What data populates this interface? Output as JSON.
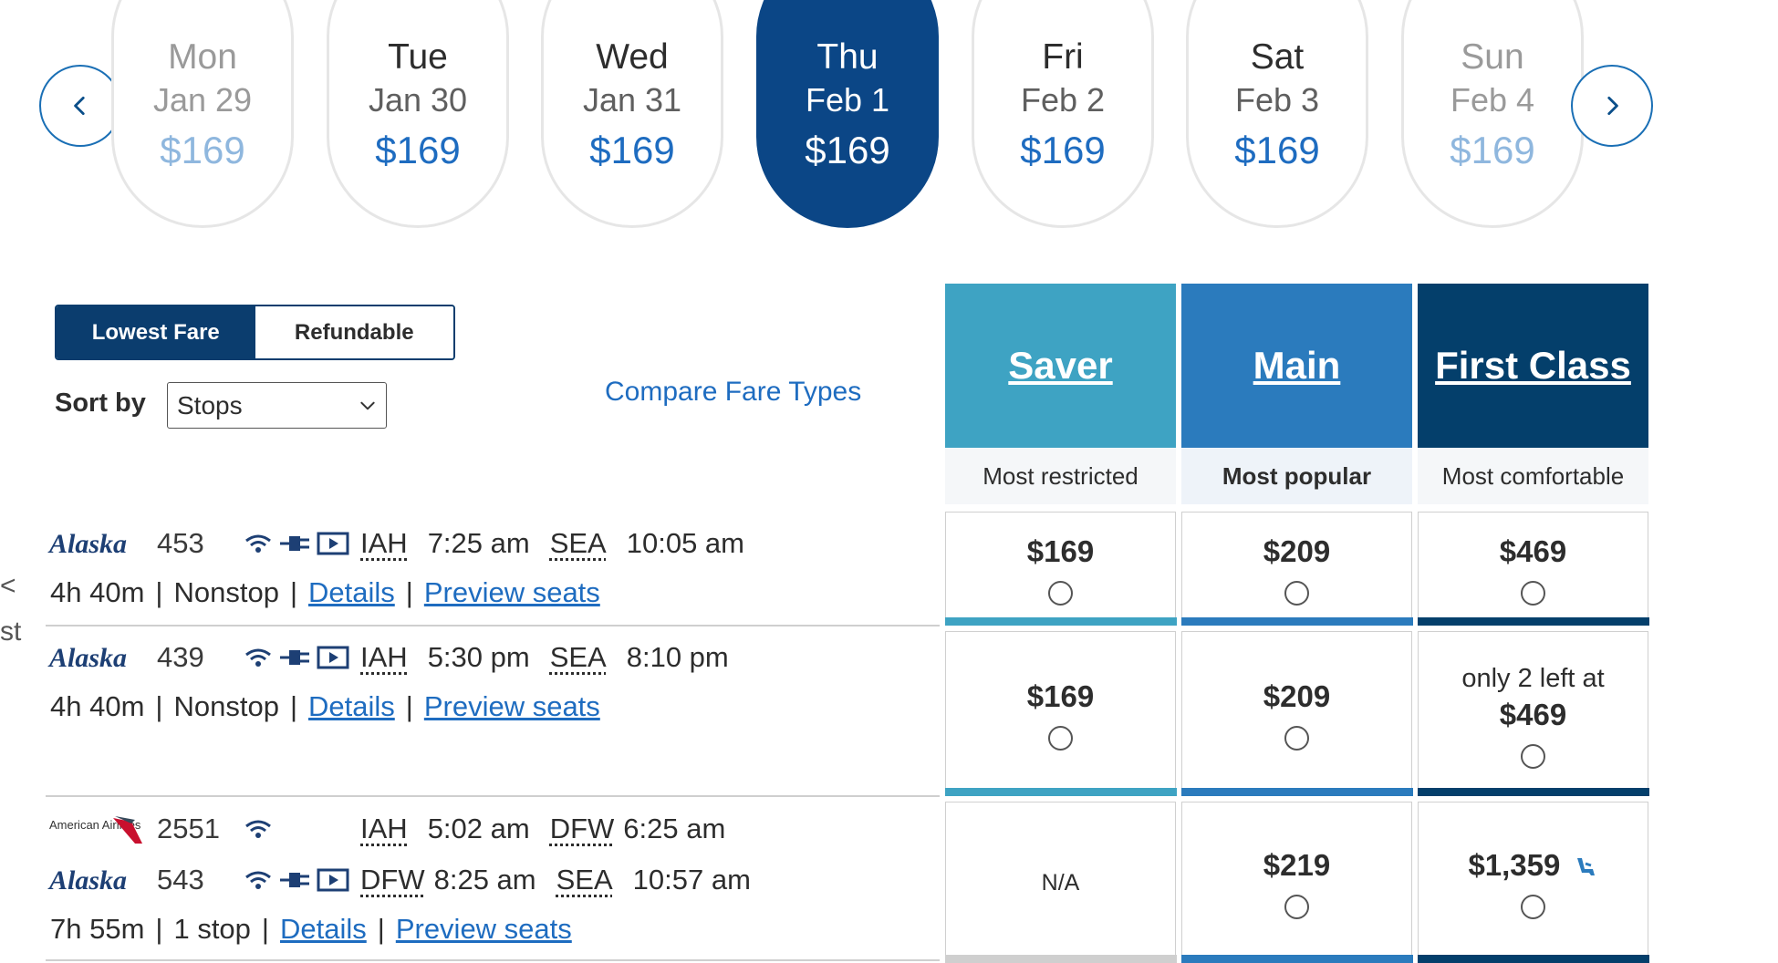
{
  "carousel": {
    "prev_icon": "chevron-left-icon",
    "next_icon": "chevron-right-icon",
    "days": [
      {
        "day": "Mon",
        "date": "Jan 29",
        "price": "$169",
        "state": "faded"
      },
      {
        "day": "Tue",
        "date": "Jan 30",
        "price": "$169",
        "state": "normal"
      },
      {
        "day": "Wed",
        "date": "Jan 31",
        "price": "$169",
        "state": "normal"
      },
      {
        "day": "Thu",
        "date": "Feb 1",
        "price": "$169",
        "state": "selected"
      },
      {
        "day": "Fri",
        "date": "Feb 2",
        "price": "$169",
        "state": "normal"
      },
      {
        "day": "Sat",
        "date": "Feb 3",
        "price": "$169",
        "state": "normal"
      },
      {
        "day": "Sun",
        "date": "Feb 4",
        "price": "$169",
        "state": "faded"
      }
    ]
  },
  "controls": {
    "fare_toggle": [
      "Lowest Fare",
      "Refundable"
    ],
    "sort_label": "Sort by",
    "sort_value": "Stops",
    "compare_link": "Compare Fare Types"
  },
  "fare_types": [
    {
      "name": "Saver",
      "subtitle": "Most restricted",
      "color": "#3ea3c3"
    },
    {
      "name": "Main",
      "subtitle": "Most popular",
      "color": "#2b7bbd"
    },
    {
      "name": "First Class",
      "subtitle": "Most comfortable",
      "color": "#043f6b"
    }
  ],
  "edge_fragments": [
    "<",
    "st"
  ],
  "flights": [
    {
      "segments": [
        {
          "airline": "Alaska",
          "flight": "453",
          "from": "IAH",
          "dep": "7:25 am",
          "to": "SEA",
          "arr": "10:05 am"
        }
      ],
      "duration": "4h 40m",
      "stops": "Nonstop",
      "details": "Details",
      "preview": "Preview seats",
      "fares": [
        {
          "price": "$169"
        },
        {
          "price": "$209"
        },
        {
          "price": "$469"
        }
      ]
    },
    {
      "segments": [
        {
          "airline": "Alaska",
          "flight": "439",
          "from": "IAH",
          "dep": "5:30 pm",
          "to": "SEA",
          "arr": "8:10 pm"
        }
      ],
      "duration": "4h 40m",
      "stops": "Nonstop",
      "details": "Details",
      "preview": "Preview seats",
      "fares": [
        {
          "price": "$169"
        },
        {
          "price": "$209"
        },
        {
          "note": "only 2 left at",
          "price": "$469"
        }
      ]
    },
    {
      "segments": [
        {
          "airline": "American Airlines",
          "flight": "2551",
          "from": "IAH",
          "dep": "5:02 am",
          "to": "DFW",
          "arr": "6:25 am"
        },
        {
          "airline": "Alaska",
          "flight": "543",
          "from": "DFW",
          "dep": "8:25 am",
          "to": "SEA",
          "arr": "10:57 am"
        }
      ],
      "duration": "7h 55m",
      "stops": "1 stop",
      "details": "Details",
      "preview": "Preview seats",
      "fares": [
        {
          "na": "N/A"
        },
        {
          "price": "$219"
        },
        {
          "price": "$1,359",
          "icon": "seat-icon"
        }
      ]
    }
  ]
}
